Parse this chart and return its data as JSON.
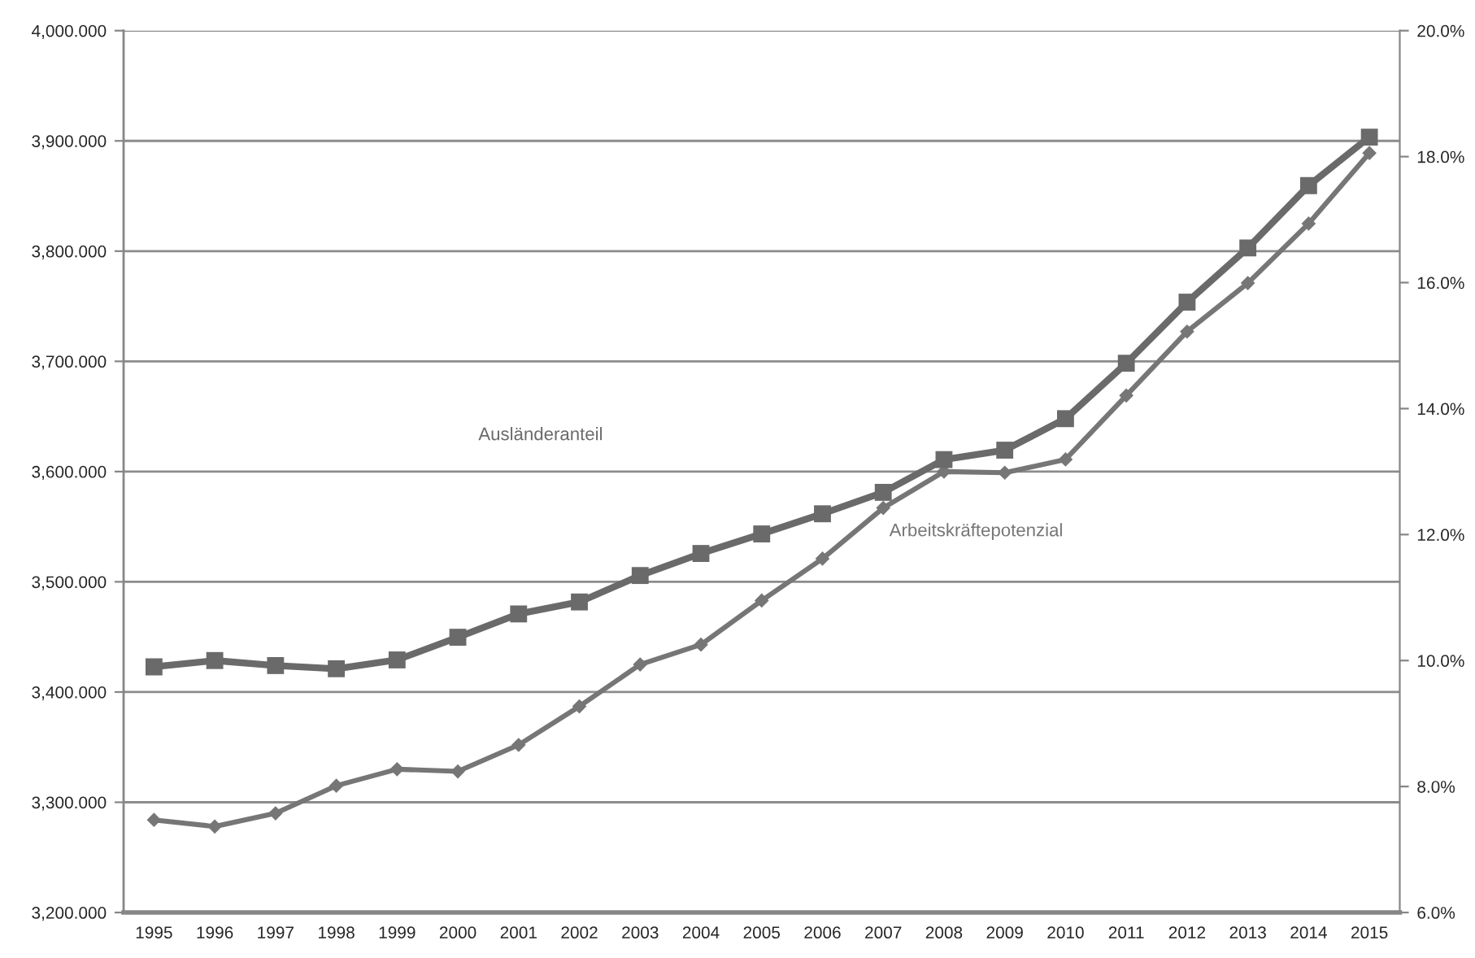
{
  "chart_data": {
    "type": "line",
    "categories": [
      "1995",
      "1996",
      "1997",
      "1998",
      "1999",
      "2000",
      "2001",
      "2002",
      "2003",
      "2004",
      "2005",
      "2006",
      "2007",
      "2008",
      "2009",
      "2010",
      "2011",
      "2012",
      "2013",
      "2014",
      "2015"
    ],
    "series": [
      {
        "name": "Arbeitskräftepotenzial",
        "color": "#767676",
        "marker": "diamond",
        "values": [
          3284,
          3278,
          3290,
          3315,
          3330,
          3328,
          3352,
          3387,
          3425,
          3443,
          3483,
          3521,
          3567,
          3600,
          3599,
          3611,
          3669,
          3727,
          3771,
          3825,
          3889
        ]
      },
      {
        "name": "Ausländeranteil",
        "color": "#6a6a6a",
        "marker": "square",
        "axis": "y2",
        "values": [
          9.9,
          10.0,
          9.92,
          9.87,
          10.01,
          10.37,
          10.74,
          10.93,
          11.35,
          11.7,
          12.01,
          12.33,
          12.67,
          13.19,
          13.34,
          13.84,
          14.72,
          15.69,
          16.55,
          17.54,
          18.31
        ]
      }
    ],
    "ylim": [
      3200,
      4000
    ],
    "yticks": [
      {
        "value": 3200,
        "label": "3,200.000"
      },
      {
        "value": 3300,
        "label": "3,300.000"
      },
      {
        "value": 3400,
        "label": "3,400.000"
      },
      {
        "value": 3500,
        "label": "3,500.000"
      },
      {
        "value": 3600,
        "label": "3,600.000"
      },
      {
        "value": 3700,
        "label": "3,700.000"
      },
      {
        "value": 3800,
        "label": "3,800.000"
      },
      {
        "value": 3900,
        "label": "3,900.000"
      },
      {
        "value": 4000,
        "label": "4,000.000"
      }
    ],
    "y2lim": [
      6,
      20
    ],
    "y2ticks": [
      {
        "value": 6,
        "label": "6.0%"
      },
      {
        "value": 8,
        "label": "8.0%"
      },
      {
        "value": 10,
        "label": "10.0%"
      },
      {
        "value": 12,
        "label": "12.0%"
      },
      {
        "value": 14,
        "label": "14.0%"
      },
      {
        "value": 16,
        "label": "16.0%"
      },
      {
        "value": 18,
        "label": "18.0%"
      },
      {
        "value": 20,
        "label": "20.0%"
      }
    ],
    "grid": "y",
    "legend": false
  }
}
